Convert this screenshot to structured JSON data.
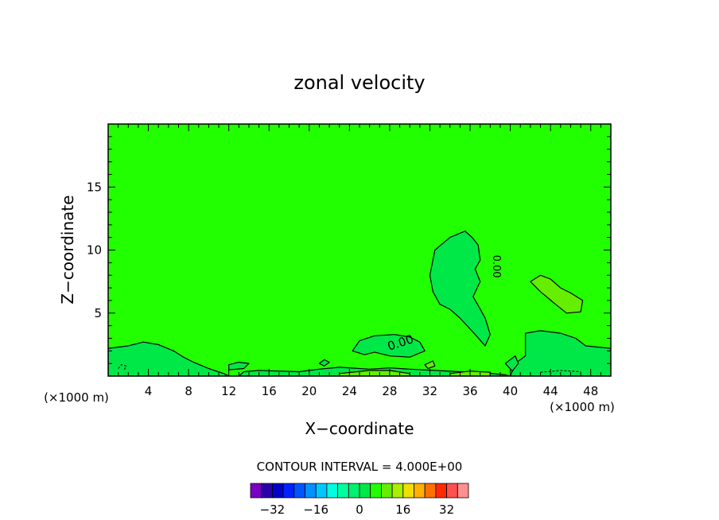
{
  "chart_data": {
    "type": "heatmap",
    "title": "zonal velocity",
    "xlabel": "X−coordinate",
    "ylabel": "Z−coordinate",
    "x_unit_left": "(×1000 m)",
    "x_unit_right": "(×1000 m)",
    "xlim": [
      0,
      50
    ],
    "ylim": [
      0,
      20
    ],
    "x_ticks": [
      4,
      8,
      12,
      16,
      20,
      24,
      28,
      32,
      36,
      40,
      44,
      48
    ],
    "y_ticks": [
      5,
      10,
      15
    ],
    "contour_interval_label": "CONTOUR INTERVAL = 4.000E+00",
    "contour_label": "0.00",
    "background_level": 4,
    "regions": [
      {
        "name": "upper-anvil",
        "level": 0,
        "points": [
          [
            32,
            8
          ],
          [
            32.5,
            10
          ],
          [
            34,
            11
          ],
          [
            35.5,
            11.5
          ],
          [
            36.2,
            11
          ],
          [
            36.8,
            10.4
          ],
          [
            37,
            9.2
          ],
          [
            36.5,
            8.5
          ],
          [
            37,
            7.5
          ],
          [
            36.3,
            6.3
          ],
          [
            36.8,
            5.6
          ],
          [
            37.5,
            4.6
          ],
          [
            38,
            3.3
          ],
          [
            37.5,
            2.4
          ],
          [
            36.5,
            3.3
          ],
          [
            35,
            4.6
          ],
          [
            34,
            5.3
          ],
          [
            33,
            5.7
          ],
          [
            32.3,
            6.7
          ]
        ]
      },
      {
        "name": "low-left",
        "level": 0,
        "points": [
          [
            0,
            2.2
          ],
          [
            2,
            2.4
          ],
          [
            3.5,
            2.7
          ],
          [
            5,
            2.5
          ],
          [
            6.5,
            2
          ],
          [
            7.5,
            1.5
          ],
          [
            8.5,
            1.1
          ],
          [
            10,
            0.6
          ],
          [
            11.5,
            0.2
          ],
          [
            12,
            0
          ],
          [
            0,
            0
          ]
        ]
      },
      {
        "name": "low-mid",
        "level": 0,
        "points": [
          [
            24.3,
            2
          ],
          [
            25,
            2.8
          ],
          [
            26.5,
            3.2
          ],
          [
            28.5,
            3.3
          ],
          [
            30,
            3.1
          ],
          [
            31,
            2.7
          ],
          [
            31.5,
            2
          ],
          [
            30,
            1.5
          ],
          [
            28,
            1.6
          ],
          [
            26.5,
            1.9
          ],
          [
            25.5,
            1.7
          ]
        ]
      },
      {
        "name": "low-right-1",
        "level": 0,
        "points": [
          [
            41.5,
            3.4
          ],
          [
            43,
            3.6
          ],
          [
            45,
            3.4
          ],
          [
            46.5,
            3
          ],
          [
            47.5,
            2.4
          ],
          [
            50,
            2.2
          ],
          [
            50,
            0
          ],
          [
            40,
            0
          ],
          [
            40.5,
            1
          ],
          [
            41.5,
            1.6
          ]
        ]
      },
      {
        "name": "low-right-2",
        "level": 0,
        "points": [
          [
            39.5,
            1
          ],
          [
            40.5,
            1.6
          ],
          [
            40.8,
            1
          ],
          [
            40.2,
            0.4
          ]
        ]
      },
      {
        "name": "surface-strip",
        "level": 0,
        "points": [
          [
            13,
            0
          ],
          [
            13.5,
            0.35
          ],
          [
            15,
            0.45
          ],
          [
            17,
            0.4
          ],
          [
            19,
            0.35
          ],
          [
            21,
            0.55
          ],
          [
            23,
            0.7
          ],
          [
            26,
            0.55
          ],
          [
            28,
            0.65
          ],
          [
            30,
            0.55
          ],
          [
            32.5,
            0.45
          ],
          [
            35,
            0.35
          ],
          [
            37.5,
            0.25
          ],
          [
            39.5,
            0.1
          ],
          [
            40,
            0
          ]
        ]
      },
      {
        "name": "small-blob-1",
        "level": 0,
        "points": [
          [
            12,
            0.5
          ],
          [
            13.5,
            0.6
          ],
          [
            14,
            1
          ],
          [
            13,
            1.1
          ],
          [
            12,
            0.9
          ]
        ]
      },
      {
        "name": "small-blob-2",
        "level": 0,
        "points": [
          [
            21,
            1.0
          ],
          [
            21.5,
            1.3
          ],
          [
            22,
            1.1
          ],
          [
            21.5,
            0.8
          ]
        ]
      },
      {
        "name": "warm-blob",
        "level": 8,
        "points": [
          [
            42,
            7.5
          ],
          [
            43,
            8
          ],
          [
            44,
            7.7
          ],
          [
            45,
            7
          ],
          [
            46,
            6.6
          ],
          [
            47.2,
            6
          ],
          [
            47,
            5.1
          ],
          [
            45.6,
            5
          ],
          [
            44.5,
            5.7
          ],
          [
            43,
            6.7
          ]
        ]
      },
      {
        "name": "warm-surface-1",
        "level": 8,
        "points": [
          [
            23,
            0.2
          ],
          [
            26,
            0.45
          ],
          [
            28,
            0.45
          ],
          [
            30,
            0.2
          ],
          [
            30,
            0
          ],
          [
            23,
            0
          ]
        ]
      },
      {
        "name": "warm-surface-2",
        "level": 8,
        "points": [
          [
            34,
            0.2
          ],
          [
            36,
            0.4
          ],
          [
            38,
            0.3
          ],
          [
            38,
            0
          ],
          [
            34,
            0
          ]
        ]
      },
      {
        "name": "warm-speck",
        "level": 8,
        "points": [
          [
            31.5,
            0.9
          ],
          [
            32.3,
            1.2
          ],
          [
            32.5,
            0.8
          ],
          [
            31.8,
            0.6
          ]
        ]
      }
    ],
    "dashed_contours": [
      [
        [
          1,
          0.6
        ],
        [
          1.3,
          0.9
        ],
        [
          1.8,
          0.8
        ],
        [
          1.6,
          0.5
        ]
      ],
      [
        [
          43,
          0.3
        ],
        [
          45,
          0.45
        ],
        [
          47,
          0.35
        ]
      ]
    ],
    "colorbar": {
      "levels": [
        -36,
        -32,
        -28,
        -24,
        -20,
        -16,
        -12,
        -8,
        -4,
        0,
        4,
        8,
        12,
        16,
        20,
        24,
        28,
        32,
        36
      ],
      "colors": [
        "#7a00c4",
        "#2a00a8",
        "#0000c8",
        "#0022ff",
        "#0055ff",
        "#0090ff",
        "#00c8ff",
        "#00ffe0",
        "#00ffa0",
        "#00f070",
        "#00e848",
        "#22ff00",
        "#66ee00",
        "#aaee00",
        "#f0e000",
        "#ffb000",
        "#ff7000",
        "#ff2a00",
        "#ff5050",
        "#ff9090"
      ],
      "tick_labels": [
        {
          "value": -32,
          "label": "−32"
        },
        {
          "value": -16,
          "label": "−16"
        },
        {
          "value": 0,
          "label": "0"
        },
        {
          "value": 16,
          "label": "16"
        },
        {
          "value": 32,
          "label": "32"
        }
      ]
    },
    "grid": false
  }
}
